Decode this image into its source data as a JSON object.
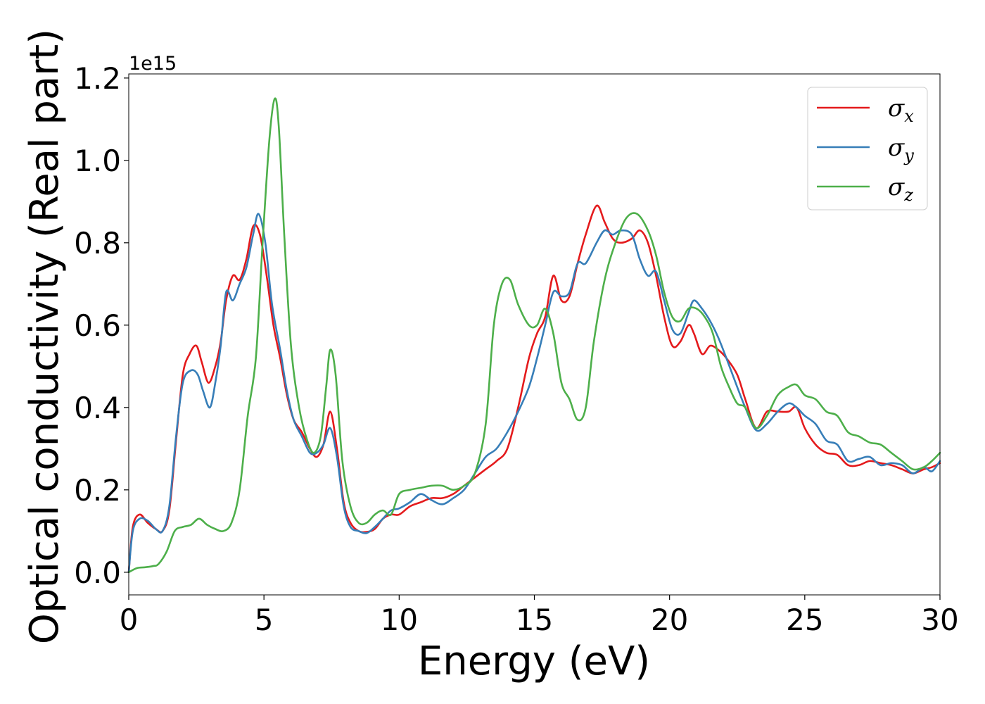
{
  "chart_data": {
    "type": "line",
    "xlabel": "Energy (eV)",
    "ylabel": "Optical conductivity (Real part)",
    "y_offset_label": "1e15",
    "xlim": [
      0,
      30
    ],
    "ylim": [
      -0.055,
      1.21
    ],
    "xticks": [
      0,
      5,
      10,
      15,
      20,
      25,
      30
    ],
    "xtick_labels": [
      "0",
      "5",
      "10",
      "15",
      "20",
      "25",
      "30"
    ],
    "yticks": [
      0.0,
      0.2,
      0.4,
      0.6,
      0.8,
      1.0,
      1.2
    ],
    "ytick_labels": [
      "0.0",
      "0.2",
      "0.4",
      "0.6",
      "0.8",
      "1.0",
      "1.2"
    ],
    "grid": false,
    "legend_position": "top-right",
    "series": [
      {
        "name": "σ_x",
        "label_main": "σ",
        "label_sub": "x",
        "color": "#e41a1c",
        "x": [
          0,
          0.15,
          0.4,
          0.7,
          1.0,
          1.25,
          1.5,
          1.75,
          2.0,
          2.25,
          2.5,
          2.7,
          2.95,
          3.2,
          3.4,
          3.6,
          3.85,
          4.1,
          4.35,
          4.6,
          4.85,
          5.1,
          5.35,
          5.6,
          5.85,
          6.1,
          6.4,
          6.7,
          6.95,
          7.2,
          7.45,
          7.7,
          7.95,
          8.2,
          8.5,
          8.8,
          9.1,
          9.4,
          9.7,
          10.0,
          10.4,
          10.8,
          11.2,
          11.6,
          12.0,
          12.4,
          12.8,
          13.2,
          13.6,
          14.0,
          14.4,
          14.8,
          15.1,
          15.4,
          15.7,
          16.0,
          16.3,
          16.6,
          16.9,
          17.3,
          17.6,
          17.9,
          18.2,
          18.6,
          18.9,
          19.2,
          19.5,
          19.8,
          20.1,
          20.4,
          20.7,
          20.9,
          21.2,
          21.5,
          21.8,
          22.1,
          22.5,
          22.8,
          23.2,
          23.6,
          24.0,
          24.4,
          24.7,
          25.0,
          25.4,
          25.8,
          26.2,
          26.6,
          27.0,
          27.4,
          27.8,
          28.2,
          28.6,
          29.0,
          29.4,
          29.7,
          30.0
        ],
        "y": [
          0.0,
          0.11,
          0.14,
          0.12,
          0.105,
          0.1,
          0.15,
          0.32,
          0.48,
          0.53,
          0.55,
          0.51,
          0.46,
          0.5,
          0.56,
          0.66,
          0.72,
          0.71,
          0.76,
          0.84,
          0.82,
          0.72,
          0.6,
          0.52,
          0.43,
          0.37,
          0.34,
          0.3,
          0.28,
          0.31,
          0.39,
          0.3,
          0.17,
          0.12,
          0.1,
          0.098,
          0.105,
          0.13,
          0.14,
          0.14,
          0.16,
          0.17,
          0.18,
          0.18,
          0.19,
          0.21,
          0.23,
          0.25,
          0.27,
          0.3,
          0.4,
          0.52,
          0.58,
          0.62,
          0.72,
          0.66,
          0.67,
          0.75,
          0.82,
          0.89,
          0.85,
          0.81,
          0.8,
          0.81,
          0.83,
          0.8,
          0.72,
          0.62,
          0.55,
          0.56,
          0.6,
          0.58,
          0.53,
          0.55,
          0.54,
          0.52,
          0.48,
          0.42,
          0.35,
          0.39,
          0.39,
          0.39,
          0.4,
          0.35,
          0.31,
          0.29,
          0.285,
          0.26,
          0.26,
          0.27,
          0.265,
          0.26,
          0.25,
          0.24,
          0.25,
          0.255,
          0.265
        ]
      },
      {
        "name": "σ_y",
        "label_main": "σ",
        "label_sub": "y",
        "color": "#377eb8",
        "x": [
          0,
          0.15,
          0.4,
          0.7,
          1.0,
          1.25,
          1.5,
          1.75,
          2.0,
          2.3,
          2.55,
          2.75,
          3.0,
          3.2,
          3.4,
          3.6,
          3.85,
          4.1,
          4.35,
          4.6,
          4.8,
          5.05,
          5.3,
          5.6,
          5.85,
          6.1,
          6.4,
          6.7,
          6.95,
          7.2,
          7.45,
          7.7,
          7.95,
          8.2,
          8.5,
          8.8,
          9.1,
          9.4,
          9.7,
          10.0,
          10.4,
          10.8,
          11.2,
          11.6,
          12.0,
          12.4,
          12.8,
          13.2,
          13.6,
          14.0,
          14.4,
          14.8,
          15.1,
          15.4,
          15.7,
          16.0,
          16.3,
          16.6,
          16.9,
          17.3,
          17.6,
          17.9,
          18.2,
          18.6,
          18.9,
          19.2,
          19.5,
          19.8,
          20.1,
          20.4,
          20.7,
          20.9,
          21.2,
          21.5,
          21.8,
          22.1,
          22.5,
          22.8,
          23.2,
          23.6,
          24.0,
          24.4,
          24.7,
          25.0,
          25.4,
          25.8,
          26.2,
          26.6,
          27.0,
          27.4,
          27.8,
          28.2,
          28.6,
          29.0,
          29.4,
          29.7,
          30.0
        ],
        "y": [
          0.0,
          0.1,
          0.13,
          0.125,
          0.105,
          0.1,
          0.16,
          0.33,
          0.46,
          0.49,
          0.48,
          0.44,
          0.4,
          0.46,
          0.55,
          0.68,
          0.66,
          0.7,
          0.74,
          0.82,
          0.87,
          0.8,
          0.65,
          0.54,
          0.44,
          0.37,
          0.33,
          0.29,
          0.29,
          0.31,
          0.35,
          0.28,
          0.16,
          0.11,
          0.1,
          0.095,
          0.11,
          0.13,
          0.15,
          0.155,
          0.17,
          0.19,
          0.175,
          0.165,
          0.18,
          0.2,
          0.24,
          0.28,
          0.3,
          0.34,
          0.39,
          0.45,
          0.52,
          0.6,
          0.68,
          0.67,
          0.68,
          0.75,
          0.75,
          0.8,
          0.83,
          0.82,
          0.83,
          0.82,
          0.76,
          0.72,
          0.73,
          0.66,
          0.59,
          0.58,
          0.63,
          0.66,
          0.64,
          0.61,
          0.57,
          0.52,
          0.45,
          0.4,
          0.345,
          0.36,
          0.39,
          0.41,
          0.4,
          0.38,
          0.36,
          0.32,
          0.31,
          0.27,
          0.275,
          0.28,
          0.26,
          0.265,
          0.26,
          0.24,
          0.255,
          0.245,
          0.27
        ]
      },
      {
        "name": "σ_z",
        "label_main": "σ",
        "label_sub": "z",
        "color": "#4daf4a",
        "x": [
          0,
          0.3,
          0.6,
          0.9,
          1.1,
          1.4,
          1.7,
          2.0,
          2.3,
          2.6,
          2.9,
          3.2,
          3.5,
          3.8,
          4.1,
          4.4,
          4.7,
          4.95,
          5.2,
          5.4,
          5.55,
          5.75,
          6.0,
          6.3,
          6.6,
          6.85,
          7.1,
          7.3,
          7.45,
          7.65,
          7.9,
          8.2,
          8.5,
          8.8,
          9.1,
          9.4,
          9.7,
          10.0,
          10.4,
          10.8,
          11.2,
          11.6,
          12.0,
          12.4,
          12.8,
          13.2,
          13.5,
          13.8,
          14.1,
          14.4,
          14.8,
          15.1,
          15.4,
          15.7,
          16.0,
          16.3,
          16.6,
          16.9,
          17.2,
          17.6,
          18.0,
          18.4,
          18.8,
          19.2,
          19.5,
          19.8,
          20.1,
          20.4,
          20.7,
          21.0,
          21.3,
          21.6,
          21.9,
          22.2,
          22.5,
          22.8,
          23.2,
          23.6,
          24.0,
          24.4,
          24.7,
          25.0,
          25.4,
          25.8,
          26.2,
          26.6,
          27.0,
          27.4,
          27.8,
          28.2,
          28.6,
          29.0,
          29.4,
          29.7,
          30.0
        ],
        "y": [
          0.0,
          0.01,
          0.012,
          0.015,
          0.02,
          0.05,
          0.1,
          0.11,
          0.115,
          0.13,
          0.115,
          0.105,
          0.1,
          0.12,
          0.2,
          0.38,
          0.52,
          0.8,
          1.05,
          1.15,
          1.08,
          0.82,
          0.55,
          0.4,
          0.32,
          0.29,
          0.33,
          0.45,
          0.54,
          0.48,
          0.27,
          0.16,
          0.12,
          0.12,
          0.14,
          0.15,
          0.14,
          0.19,
          0.2,
          0.205,
          0.21,
          0.21,
          0.2,
          0.21,
          0.24,
          0.36,
          0.6,
          0.7,
          0.71,
          0.65,
          0.6,
          0.6,
          0.64,
          0.58,
          0.46,
          0.42,
          0.37,
          0.4,
          0.56,
          0.71,
          0.8,
          0.86,
          0.87,
          0.83,
          0.77,
          0.68,
          0.62,
          0.61,
          0.64,
          0.64,
          0.62,
          0.58,
          0.5,
          0.45,
          0.41,
          0.4,
          0.35,
          0.38,
          0.43,
          0.45,
          0.455,
          0.43,
          0.42,
          0.39,
          0.38,
          0.34,
          0.33,
          0.315,
          0.31,
          0.29,
          0.27,
          0.25,
          0.255,
          0.27,
          0.29
        ]
      }
    ]
  }
}
